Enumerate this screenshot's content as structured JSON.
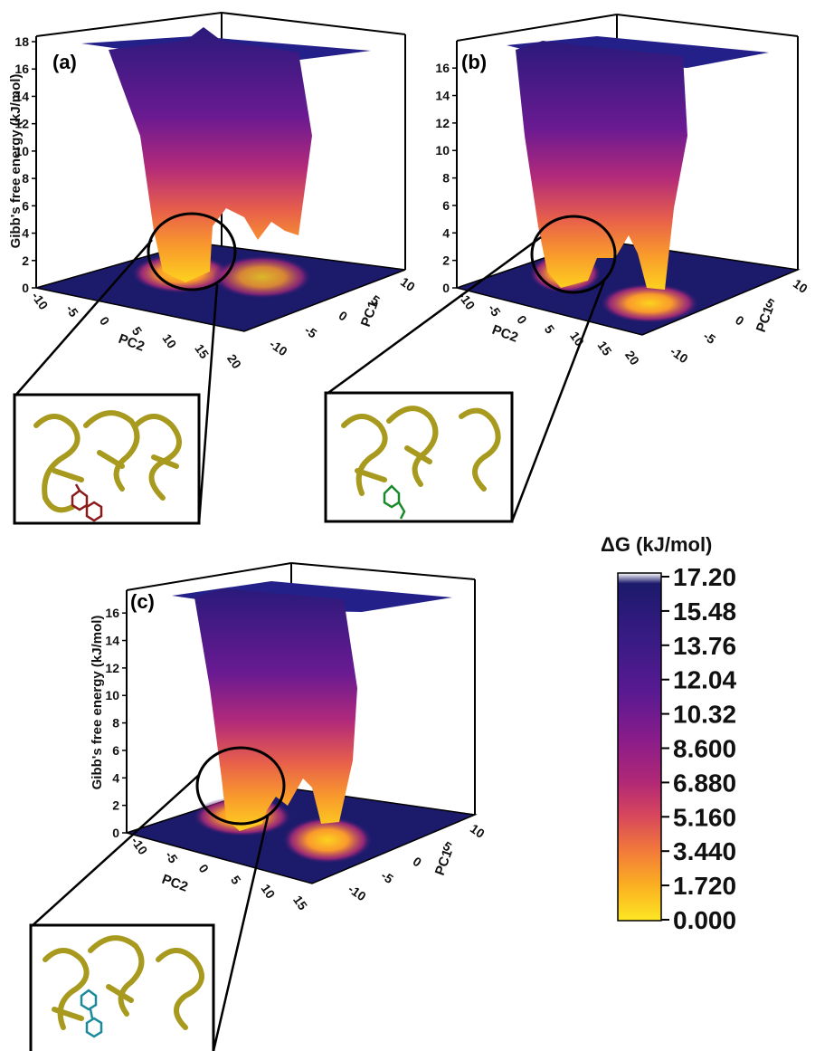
{
  "figure": {
    "colorbar": {
      "title": "ΔG (kJ/mol)",
      "ticks": [
        "17.20",
        "15.48",
        "13.76",
        "12.04",
        "10.32",
        "8.600",
        "6.880",
        "5.160",
        "3.440",
        "1.720",
        "0.000"
      ],
      "colors": [
        "#ffffff",
        "#1c1a6b",
        "#3a1b86",
        "#5b1a91",
        "#7f1b8c",
        "#a02080",
        "#c9386a",
        "#e55d4a",
        "#f78f30",
        "#fcbf1e",
        "#fde725"
      ]
    },
    "axes": {
      "zlabel": "Gibb's free energy (kJ/mol)",
      "xlabel": "PC1",
      "ylabel": "PC2"
    }
  },
  "chart_data": [
    {
      "type": "surface",
      "panel": "(a)",
      "zlabel": "Gibb's free energy (kJ/mol)",
      "xlabel": "PC1",
      "ylabel": "PC2",
      "z_ticks": [
        "0",
        "2",
        "4",
        "6",
        "8",
        "10",
        "12",
        "14",
        "16",
        "18"
      ],
      "pc2_ticks": [
        "-10",
        "-5",
        "0",
        "5",
        "10",
        "15",
        "20"
      ],
      "pc1_ticks": [
        "10",
        "5",
        "0",
        "-5",
        "-10"
      ],
      "zlim": [
        0,
        18
      ],
      "minima": [
        {
          "pc1": 3,
          "pc2": 7,
          "g": 0.0
        },
        {
          "pc1": -2,
          "pc2": 14,
          "g": 3.4
        }
      ],
      "inset": "protein with red ligand"
    },
    {
      "type": "surface",
      "panel": "(b)",
      "zlabel": "Gibb's free energy (kJ/mol)",
      "xlabel": "PC1",
      "ylabel": "PC2",
      "z_ticks": [
        "0",
        "2",
        "4",
        "6",
        "8",
        "10",
        "12",
        "14",
        "16"
      ],
      "pc2_ticks": [
        "-10",
        "-5",
        "0",
        "5",
        "10",
        "15",
        "20"
      ],
      "pc1_ticks": [
        "10",
        "5",
        "0",
        "-5",
        "-10"
      ],
      "zlim": [
        0,
        17
      ],
      "minima": [
        {
          "pc1": 4,
          "pc2": 6,
          "g": 0.0
        },
        {
          "pc1": -6,
          "pc2": 14,
          "g": 0.0
        }
      ],
      "inset": "protein with green ligand"
    },
    {
      "type": "surface",
      "panel": "(c)",
      "zlabel": "Gibb's free energy (kJ/mol)",
      "xlabel": "PC1",
      "ylabel": "PC2",
      "z_ticks": [
        "0",
        "2",
        "4",
        "6",
        "8",
        "10",
        "12",
        "14",
        "16"
      ],
      "pc2_ticks": [
        "-10",
        "-5",
        "0",
        "5",
        "10",
        "15"
      ],
      "pc1_ticks": [
        "10",
        "5",
        "0",
        "-5",
        "-10"
      ],
      "zlim": [
        0,
        17
      ],
      "minima": [
        {
          "pc1": 2,
          "pc2": 3,
          "g": 0.0
        },
        {
          "pc1": -4,
          "pc2": 10,
          "g": 0.0
        }
      ],
      "inset": "protein with cyan ligand"
    }
  ]
}
